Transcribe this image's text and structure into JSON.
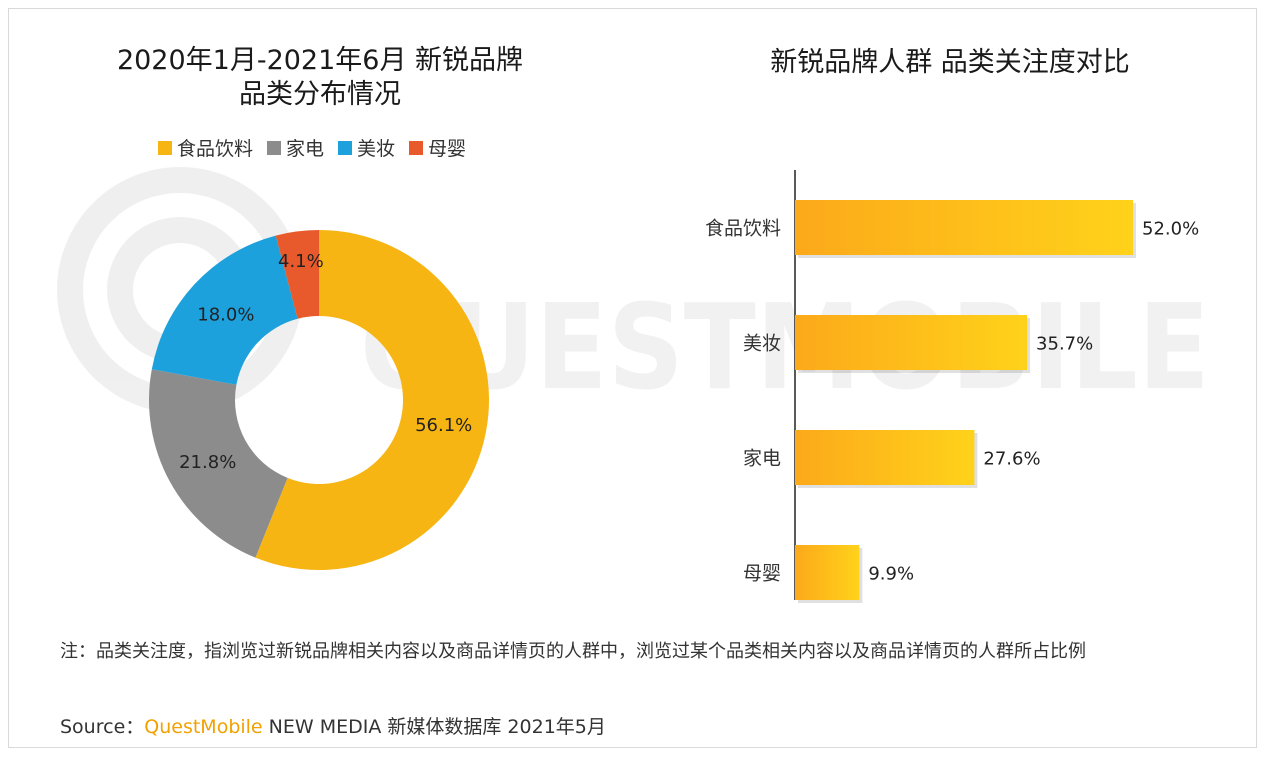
{
  "left_title_line1": "2020年1月-2021年6月 新锐品牌",
  "left_title_line2": "品类分布情况",
  "right_title": "新锐品牌人群 品类关注度对比",
  "watermark_text": "QUESTMOBILE",
  "colors": {
    "food": "#f7b514",
    "appliance": "#8c8c8c",
    "beauty": "#1da1dc",
    "baby": "#e85a2c"
  },
  "chart_data": [
    {
      "type": "pie",
      "donut": true,
      "legend_position": "top",
      "labels": [
        "食品饮料",
        "家电",
        "美妆",
        "母婴"
      ],
      "values": [
        56.1,
        21.8,
        18.0,
        4.1
      ],
      "value_labels": [
        "56.1%",
        "21.8%",
        "18.0%",
        "4.1%"
      ]
    },
    {
      "type": "bar",
      "orientation": "horizontal",
      "categories": [
        "食品饮料",
        "美妆",
        "家电",
        "母婴"
      ],
      "values": [
        52.0,
        35.7,
        27.6,
        9.9
      ],
      "value_labels": [
        "52.0%",
        "35.7%",
        "27.6%",
        "9.9%"
      ],
      "grid": false
    }
  ],
  "note": "注：品类关注度，指浏览过新锐品牌相关内容以及商品详情页的人群中，浏览过某个品类相关内容以及商品详情页的人群所占比例",
  "source_prefix": "Source：",
  "source_brand": "QuestMobile",
  "source_suffix": " NEW MEDIA 新媒体数据库 2021年5月"
}
